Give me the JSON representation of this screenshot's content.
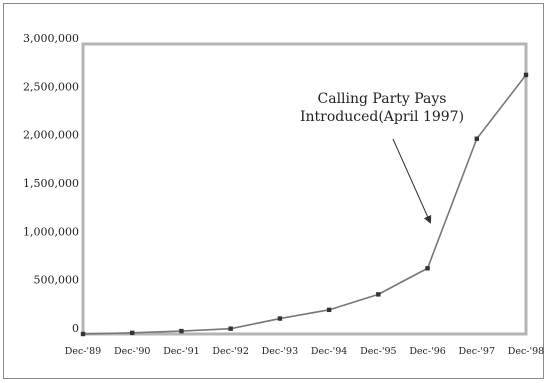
{
  "chart_data": {
    "type": "line",
    "title": "",
    "xlabel": "",
    "ylabel": "",
    "categories": [
      "Dec-'89",
      "Dec-'90",
      "Dec-'91",
      "Dec-'92",
      "Dec-'93",
      "Dec-'94",
      "Dec-'95",
      "Dec-'96",
      "Dec-'97",
      "Dec-'98"
    ],
    "series": [
      {
        "values": [
          0,
          12000,
          30000,
          55000,
          160000,
          250000,
          410000,
          680000,
          2020000,
          2680000
        ]
      }
    ],
    "ylim": [
      0,
      3000000
    ],
    "yticks": [
      "3,000,000",
      "2,500,000",
      "2,000,000",
      "1,500,000",
      "1,000,000",
      "500,000",
      "0"
    ],
    "ytick_values": [
      3000000,
      2500000,
      2000000,
      1500000,
      1000000,
      500000,
      0
    ],
    "annotation": {
      "line1": "Calling Party Pays",
      "line2": "Introduced(April 1997)",
      "points_to": "Dec-'96"
    },
    "grid": false,
    "line_color": "#777777",
    "marker_color": "#333333"
  }
}
